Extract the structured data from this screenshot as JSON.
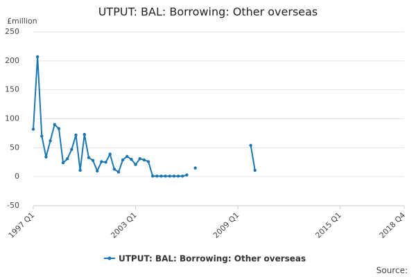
{
  "chart_data": {
    "type": "line",
    "title": "UTPUT: BAL: Borrowing: Other overseas",
    "y_label": "£million",
    "source": "Source:",
    "categories": [
      "1997 Q1",
      null,
      null,
      null,
      null,
      null,
      null,
      null,
      null,
      null,
      null,
      null,
      null,
      null,
      null,
      null,
      null,
      null,
      null,
      null,
      null,
      null,
      null,
      null,
      "2003 Q1",
      null,
      null,
      null,
      null,
      null,
      null,
      null,
      null,
      null,
      null,
      null,
      null,
      null,
      null,
      null,
      null,
      null,
      null,
      null,
      null,
      null,
      null,
      null,
      "2009 Q1",
      null,
      null,
      null,
      null,
      null,
      null,
      null,
      null,
      null,
      null,
      null,
      null,
      null,
      null,
      null,
      null,
      null,
      null,
      null,
      null,
      null,
      null,
      null,
      "2015 Q1",
      null,
      null,
      null,
      null,
      null,
      null,
      null,
      null,
      null,
      null,
      null,
      null,
      null,
      null,
      "2018 Q4"
    ],
    "series": [
      {
        "name": "UTPUT: BAL: Borrowing: Other overseas",
        "color": "#1a76b0",
        "values": [
          82,
          207,
          70,
          34,
          62,
          90,
          83,
          24,
          31,
          47,
          72,
          11,
          73,
          33,
          28,
          10,
          26,
          25,
          39,
          13,
          8,
          29,
          35,
          30,
          21,
          31,
          29,
          26,
          1,
          1,
          1,
          1,
          1,
          1,
          1,
          1,
          3,
          null,
          15,
          null,
          null,
          null,
          null,
          null,
          null,
          null,
          null,
          null,
          null,
          null,
          null,
          54,
          11,
          null,
          null,
          null,
          null,
          null,
          null,
          null,
          null,
          null,
          null,
          null,
          null,
          null,
          null,
          null,
          null,
          null,
          null,
          null,
          null,
          null,
          null,
          null,
          null,
          null,
          null,
          null,
          null,
          null,
          null,
          null,
          null,
          null,
          null,
          null
        ]
      }
    ],
    "ylim": [
      -50,
      250
    ],
    "yticks": [
      -50,
      0,
      50,
      100,
      150,
      200,
      250
    ],
    "grid": true
  }
}
